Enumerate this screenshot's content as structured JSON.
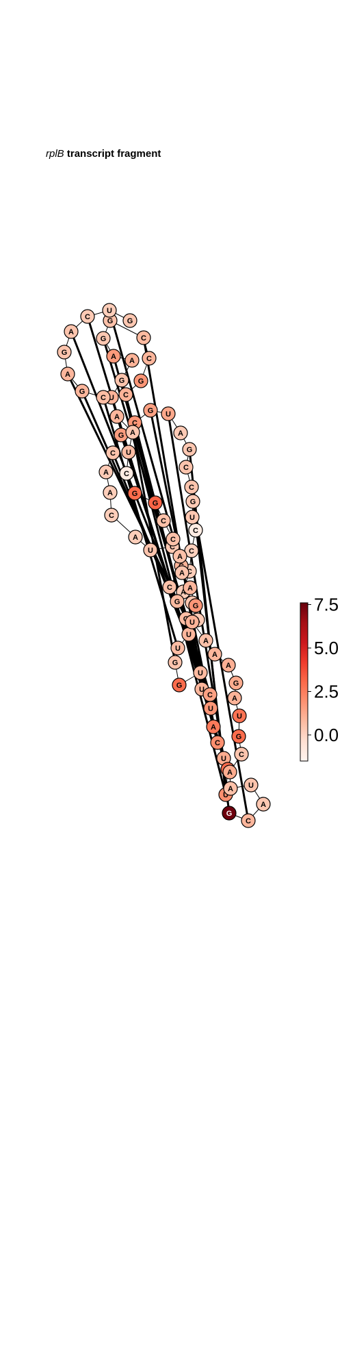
{
  "title": {
    "gene": "rplB",
    "rest": "transcript fragment"
  },
  "colorbar": {
    "min": -1.5,
    "max": 7.6,
    "ticks": [
      "0.0",
      "2.5",
      "5.0",
      "7.5"
    ],
    "tick_values": [
      0.0,
      2.5,
      5.0,
      7.5
    ],
    "colors": [
      "#fff5f0",
      "#fee0d2",
      "#fcbba1",
      "#fc9272",
      "#fb6a4a",
      "#ef3b2c",
      "#cb181d",
      "#a50f15",
      "#67000d"
    ]
  },
  "nucleotides": [
    {
      "base": "A",
      "value": 0.3
    },
    {
      "base": "C",
      "value": 0.4
    },
    {
      "base": "A",
      "value": 0.2
    },
    {
      "base": "C",
      "value": 0.2
    },
    {
      "base": "C",
      "value": 0.1
    },
    {
      "base": "C",
      "value": -1.0
    },
    {
      "base": "U",
      "value": 0.4
    },
    {
      "base": "G",
      "value": 0.3
    },
    {
      "base": "C",
      "value": 0.5
    },
    {
      "base": "C",
      "value": 0.5
    },
    {
      "base": "G",
      "value": 0.4
    },
    {
      "base": "A",
      "value": 0.3
    },
    {
      "base": "U",
      "value": 1.3
    },
    {
      "base": "G",
      "value": 1.5
    },
    {
      "base": "C",
      "value": 1.8
    },
    {
      "base": "G",
      "value": 1.6
    },
    {
      "base": "C",
      "value": 0.5
    },
    {
      "base": "A",
      "value": 0.3
    },
    {
      "base": "A",
      "value": 0.2
    },
    {
      "base": "C",
      "value": 0.2
    },
    {
      "base": "A",
      "value": 0.2
    },
    {
      "base": "U",
      "value": 0.5
    },
    {
      "base": "C",
      "value": 0.4
    },
    {
      "base": "C",
      "value": 1.0
    },
    {
      "base": "C",
      "value": 0.6
    },
    {
      "base": "G",
      "value": 0.8
    },
    {
      "base": "G",
      "value": 0.7
    },
    {
      "base": "U",
      "value": 0.9
    },
    {
      "base": "U",
      "value": 0.7
    },
    {
      "base": "G",
      "value": 0.5
    },
    {
      "base": "G",
      "value": 3.0
    },
    {
      "base": "U",
      "value": 0.8
    },
    {
      "base": "U",
      "value": 0.9
    },
    {
      "base": "C",
      "value": 1.5
    },
    {
      "base": "U",
      "value": 1.8
    },
    {
      "base": "A",
      "value": 2.6
    },
    {
      "base": "C",
      "value": 2.0
    },
    {
      "base": "U",
      "value": 1.2
    },
    {
      "base": "G",
      "value": 3.0
    },
    {
      "base": "U",
      "value": 2.0
    },
    {
      "base": "G",
      "value": 7.5
    },
    {
      "base": "C",
      "value": 0.9
    },
    {
      "base": "A",
      "value": 0.4
    },
    {
      "base": "U",
      "value": 0.5
    },
    {
      "base": "A",
      "value": 0.6
    },
    {
      "base": "A",
      "value": 1.2
    },
    {
      "base": "C",
      "value": 0.5
    },
    {
      "base": "G",
      "value": 3.0
    },
    {
      "base": "U",
      "value": 2.8
    },
    {
      "base": "A",
      "value": 1.0
    },
    {
      "base": "G",
      "value": 1.2
    },
    {
      "base": "A",
      "value": 1.1
    },
    {
      "base": "A",
      "value": 0.9
    },
    {
      "base": "A",
      "value": 0.6
    },
    {
      "base": "U",
      "value": 1.0
    },
    {
      "base": "G",
      "value": 1.8
    },
    {
      "base": "A",
      "value": 0.9
    },
    {
      "base": "A",
      "value": 0.5
    },
    {
      "base": "A",
      "value": 0.6
    },
    {
      "base": "C",
      "value": 0.6
    },
    {
      "base": "C",
      "value": 0.6
    },
    {
      "base": "G",
      "value": 3.2
    },
    {
      "base": "G",
      "value": 3.0
    },
    {
      "base": "C",
      "value": -1.0
    },
    {
      "base": "U",
      "value": 0.7
    },
    {
      "base": "A",
      "value": 0.4
    },
    {
      "base": "A",
      "value": 0.9
    },
    {
      "base": "U",
      "value": 1.0
    },
    {
      "base": "G",
      "value": 0.5
    },
    {
      "base": "A",
      "value": 1.0
    },
    {
      "base": "A",
      "value": 1.7
    },
    {
      "base": "G",
      "value": 0.4
    },
    {
      "base": "G",
      "value": 0.6
    },
    {
      "base": "C",
      "value": 0.8
    },
    {
      "base": "C",
      "value": 0.9
    },
    {
      "base": "G",
      "value": 1.8
    },
    {
      "base": "C",
      "value": 1.0
    },
    {
      "base": "C",
      "value": 0.7
    },
    {
      "base": "G",
      "value": 0.9
    },
    {
      "base": "A",
      "value": 0.9
    },
    {
      "base": "G",
      "value": 0.5
    },
    {
      "base": "A",
      "value": 0.5
    },
    {
      "base": "C",
      "value": 0.3
    },
    {
      "base": "U",
      "value": 0.2
    },
    {
      "base": "G",
      "value": 0.4
    }
  ],
  "base_pairs": [
    [
      7,
      41
    ],
    [
      8,
      40
    ],
    [
      10,
      39
    ],
    [
      12,
      37
    ],
    [
      13,
      36
    ],
    [
      14,
      35
    ],
    [
      15,
      34
    ],
    [
      16,
      33
    ],
    [
      23,
      83
    ],
    [
      24,
      82
    ],
    [
      25,
      81
    ],
    [
      26,
      79
    ],
    [
      27,
      78
    ],
    [
      28,
      77
    ],
    [
      29,
      76
    ],
    [
      31,
      73
    ],
    [
      33,
      71
    ],
    [
      34,
      70
    ],
    [
      36,
      68
    ],
    [
      37,
      67
    ],
    [
      38,
      66
    ],
    [
      39,
      65
    ]
  ]
}
